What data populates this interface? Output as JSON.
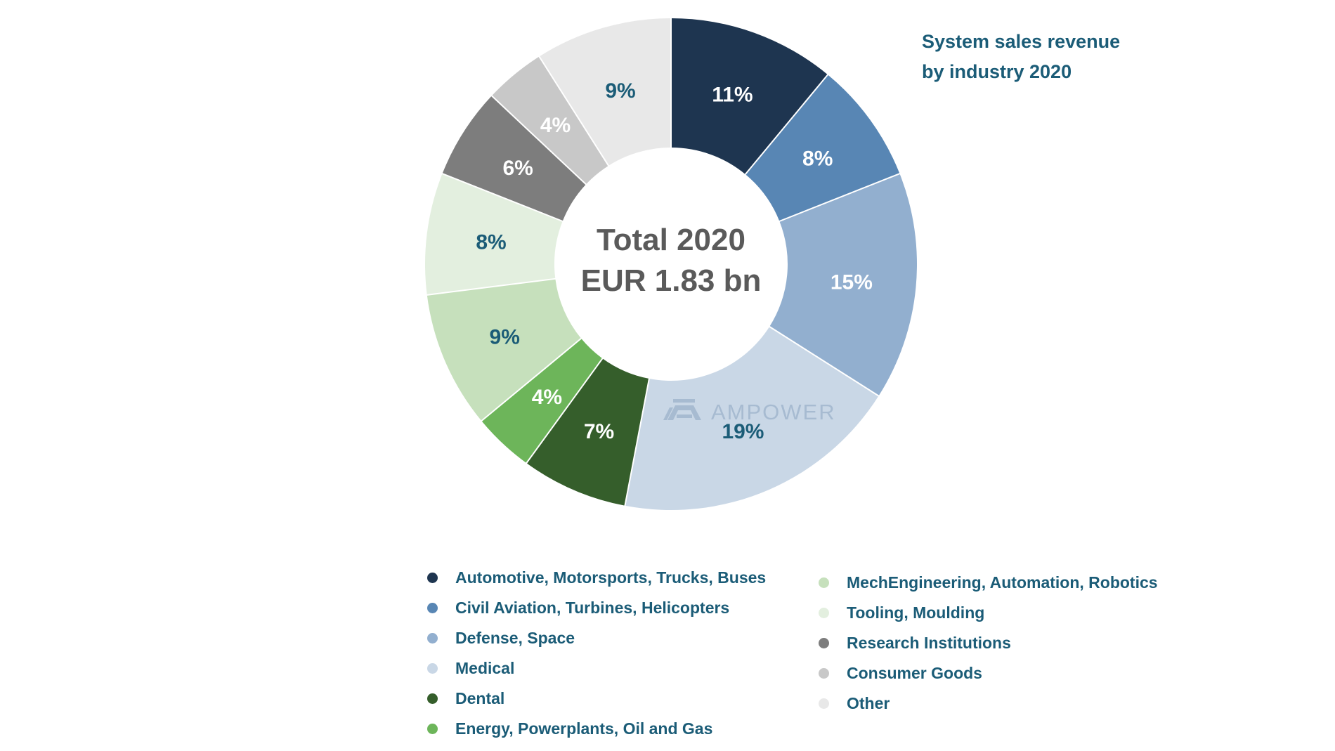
{
  "chart_data": {
    "type": "pie",
    "title": "System sales revenue by industry 2020",
    "title_lines": [
      "System sales revenue",
      "by industry 2020"
    ],
    "center_label": {
      "line1": "Total 2020",
      "line2": "EUR 1.83 bn"
    },
    "watermark": "AMPOWER",
    "legend_placement": "bottom",
    "unit": "%",
    "slices": [
      {
        "name": "Automotive, Motorsports, Trucks, Buses",
        "value": 11,
        "label": "11%",
        "color": "#1e3550",
        "label_color": "#ffffff"
      },
      {
        "name": "Civil Aviation, Turbines, Helicopters",
        "value": 8,
        "label": "8%",
        "color": "#5886b4",
        "label_color": "#ffffff"
      },
      {
        "name": "Defense, Space",
        "value": 15,
        "label": "15%",
        "color": "#92afcf",
        "label_color": "#ffffff"
      },
      {
        "name": "Medical",
        "value": 19,
        "label": "19%",
        "color": "#c9d7e6",
        "label_color": "#1b5c77"
      },
      {
        "name": "Dental",
        "value": 7,
        "label": "7%",
        "color": "#355e2b",
        "label_color": "#ffffff"
      },
      {
        "name": "Energy, Powerplants, Oil and Gas",
        "value": 4,
        "label": "4%",
        "color": "#6db55a",
        "label_color": "#ffffff"
      },
      {
        "name": "MechEngineering, Automation, Robotics",
        "value": 9,
        "label": "9%",
        "color": "#c6e0bc",
        "label_color": "#1b5c77"
      },
      {
        "name": "Tooling, Moulding",
        "value": 8,
        "label": "8%",
        "color": "#e3efdf",
        "label_color": "#1b5c77"
      },
      {
        "name": "Research Institutions",
        "value": 6,
        "label": "6%",
        "color": "#7d7d7d",
        "label_color": "#ffffff"
      },
      {
        "name": "Consumer Goods",
        "value": 4,
        "label": "4%",
        "color": "#c8c8c8",
        "label_color": "#ffffff"
      },
      {
        "name": "Other",
        "value": 9,
        "label": "9%",
        "color": "#e8e8e8",
        "label_color": "#1b5c77"
      }
    ]
  },
  "colors": {
    "text": "#1b5c77",
    "center_text": "#5a5a5a",
    "watermark": "#a7bbd1"
  }
}
